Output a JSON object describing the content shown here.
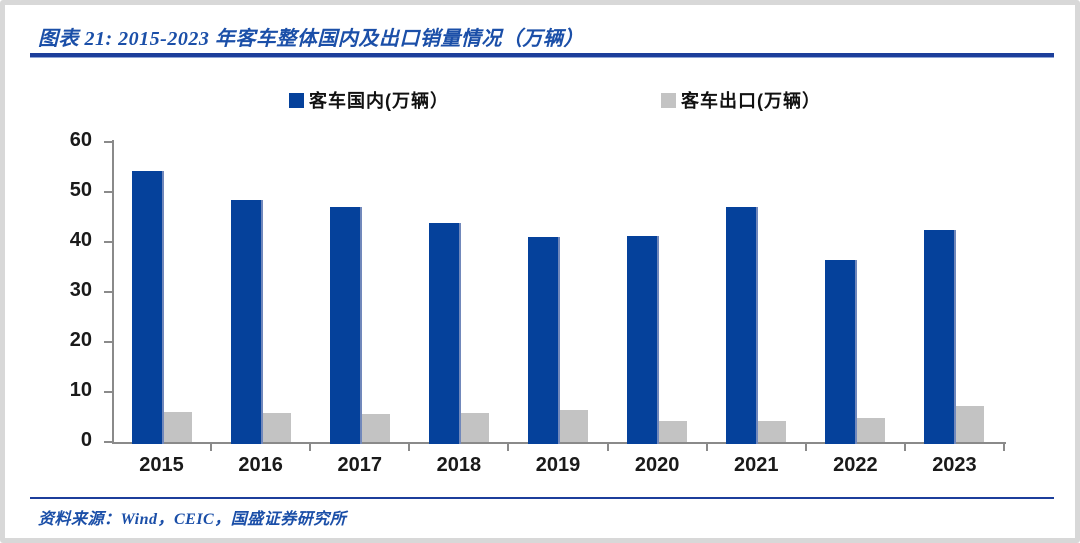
{
  "figure": {
    "title": "图表 21: 2015-2023 年客车整体国内及出口销量情况（万辆）",
    "source": "资料来源：Wind，CEIC，国盛证券研究所"
  },
  "colors": {
    "bar_blue": "#05419b",
    "bar_blue_edge": "#7188bb",
    "bar_gray": "#c3c3c3",
    "title_blue": "#1b4fa8",
    "rule_blue": "#1c3e9b",
    "axis_gray": "#8a8a8a",
    "label_black": "#1a1a1a",
    "frame_gray": "#d8d8d8"
  },
  "chart_data": {
    "type": "bar",
    "title": "图表 21: 2015-2023 年客车整体国内及出口销量情况（万辆）",
    "categories": [
      "2015",
      "2016",
      "2017",
      "2018",
      "2019",
      "2020",
      "2021",
      "2022",
      "2023"
    ],
    "series": [
      {
        "name": "客车国内(万辆）",
        "color": "#05419b",
        "values": [
          54.2,
          48.5,
          47.0,
          43.8,
          41.0,
          41.2,
          47.1,
          36.4,
          42.4
        ]
      },
      {
        "name": "客车出口(万辆）",
        "color": "#c3c3c3",
        "values": [
          6.0,
          5.9,
          5.7,
          5.8,
          6.5,
          4.2,
          4.2,
          4.9,
          7.2
        ]
      }
    ],
    "xlabel": "",
    "ylabel": "",
    "ylim": [
      0,
      60
    ],
    "yticks": [
      0,
      10,
      20,
      30,
      40,
      50,
      60
    ],
    "grid": false,
    "legend_position": "top"
  }
}
